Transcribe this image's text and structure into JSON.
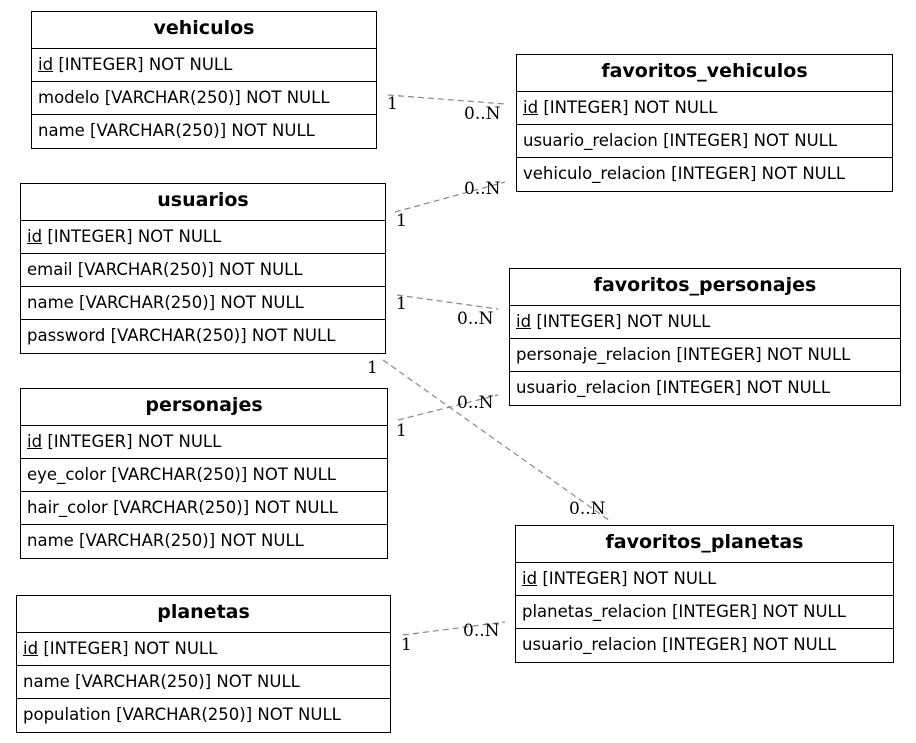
{
  "entities": {
    "vehiculos": {
      "name": "vehiculos",
      "fields": [
        {
          "name": "id",
          "type": "[INTEGER] NOT NULL",
          "pk": true
        },
        {
          "name": "modelo",
          "type": "[VARCHAR(250)] NOT NULL",
          "pk": false
        },
        {
          "name": "name",
          "type": "[VARCHAR(250)] NOT NULL",
          "pk": false
        }
      ]
    },
    "favoritos_vehiculos": {
      "name": "favoritos_vehiculos",
      "fields": [
        {
          "name": "id",
          "type": "[INTEGER] NOT NULL",
          "pk": true
        },
        {
          "name": "usuario_relacion",
          "type": "[INTEGER] NOT NULL",
          "pk": false
        },
        {
          "name": "vehiculo_relacion",
          "type": "[INTEGER] NOT NULL",
          "pk": false
        }
      ]
    },
    "usuarios": {
      "name": "usuarios",
      "fields": [
        {
          "name": "id",
          "type": "[INTEGER] NOT NULL",
          "pk": true
        },
        {
          "name": "email",
          "type": "[VARCHAR(250)] NOT NULL",
          "pk": false
        },
        {
          "name": "name",
          "type": "[VARCHAR(250)] NOT NULL",
          "pk": false
        },
        {
          "name": "password",
          "type": "[VARCHAR(250)] NOT NULL",
          "pk": false
        }
      ]
    },
    "favoritos_personajes": {
      "name": "favoritos_personajes",
      "fields": [
        {
          "name": "id",
          "type": "[INTEGER] NOT NULL",
          "pk": true
        },
        {
          "name": "personaje_relacion",
          "type": "[INTEGER] NOT NULL",
          "pk": false
        },
        {
          "name": "usuario_relacion",
          "type": "[INTEGER] NOT NULL",
          "pk": false
        }
      ]
    },
    "personajes": {
      "name": "personajes",
      "fields": [
        {
          "name": "id",
          "type": "[INTEGER] NOT NULL",
          "pk": true
        },
        {
          "name": "eye_color",
          "type": "[VARCHAR(250)] NOT NULL",
          "pk": false
        },
        {
          "name": "hair_color",
          "type": "[VARCHAR(250)] NOT NULL",
          "pk": false
        },
        {
          "name": "name",
          "type": "[VARCHAR(250)] NOT NULL",
          "pk": false
        }
      ]
    },
    "favoritos_planetas": {
      "name": "favoritos_planetas",
      "fields": [
        {
          "name": "id",
          "type": "[INTEGER] NOT NULL",
          "pk": true
        },
        {
          "name": "planetas_relacion",
          "type": "[INTEGER] NOT NULL",
          "pk": false
        },
        {
          "name": "usuario_relacion",
          "type": "[INTEGER] NOT NULL",
          "pk": false
        }
      ]
    },
    "planetas": {
      "name": "planetas",
      "fields": [
        {
          "name": "id",
          "type": "[INTEGER] NOT NULL",
          "pk": true
        },
        {
          "name": "name",
          "type": "[VARCHAR(250)] NOT NULL",
          "pk": false
        },
        {
          "name": "population",
          "type": "[VARCHAR(250)] NOT NULL",
          "pk": false
        }
      ]
    }
  },
  "relations": [
    {
      "from": "vehiculos",
      "to": "favoritos_vehiculos",
      "from_card": "1",
      "to_card": "0..N"
    },
    {
      "from": "usuarios",
      "to": "favoritos_vehiculos",
      "from_card": "1",
      "to_card": "0..N"
    },
    {
      "from": "usuarios",
      "to": "favoritos_personajes",
      "from_card": "1",
      "to_card": "0..N"
    },
    {
      "from": "usuarios",
      "to": "favoritos_planetas",
      "from_card": "1",
      "to_card": "0..N"
    },
    {
      "from": "personajes",
      "to": "favoritos_personajes",
      "from_card": "1",
      "to_card": "0..N"
    },
    {
      "from": "planetas",
      "to": "favoritos_planetas",
      "from_card": "1",
      "to_card": "0..N"
    }
  ],
  "colors": {
    "edge": "#888888",
    "border": "#000000"
  }
}
